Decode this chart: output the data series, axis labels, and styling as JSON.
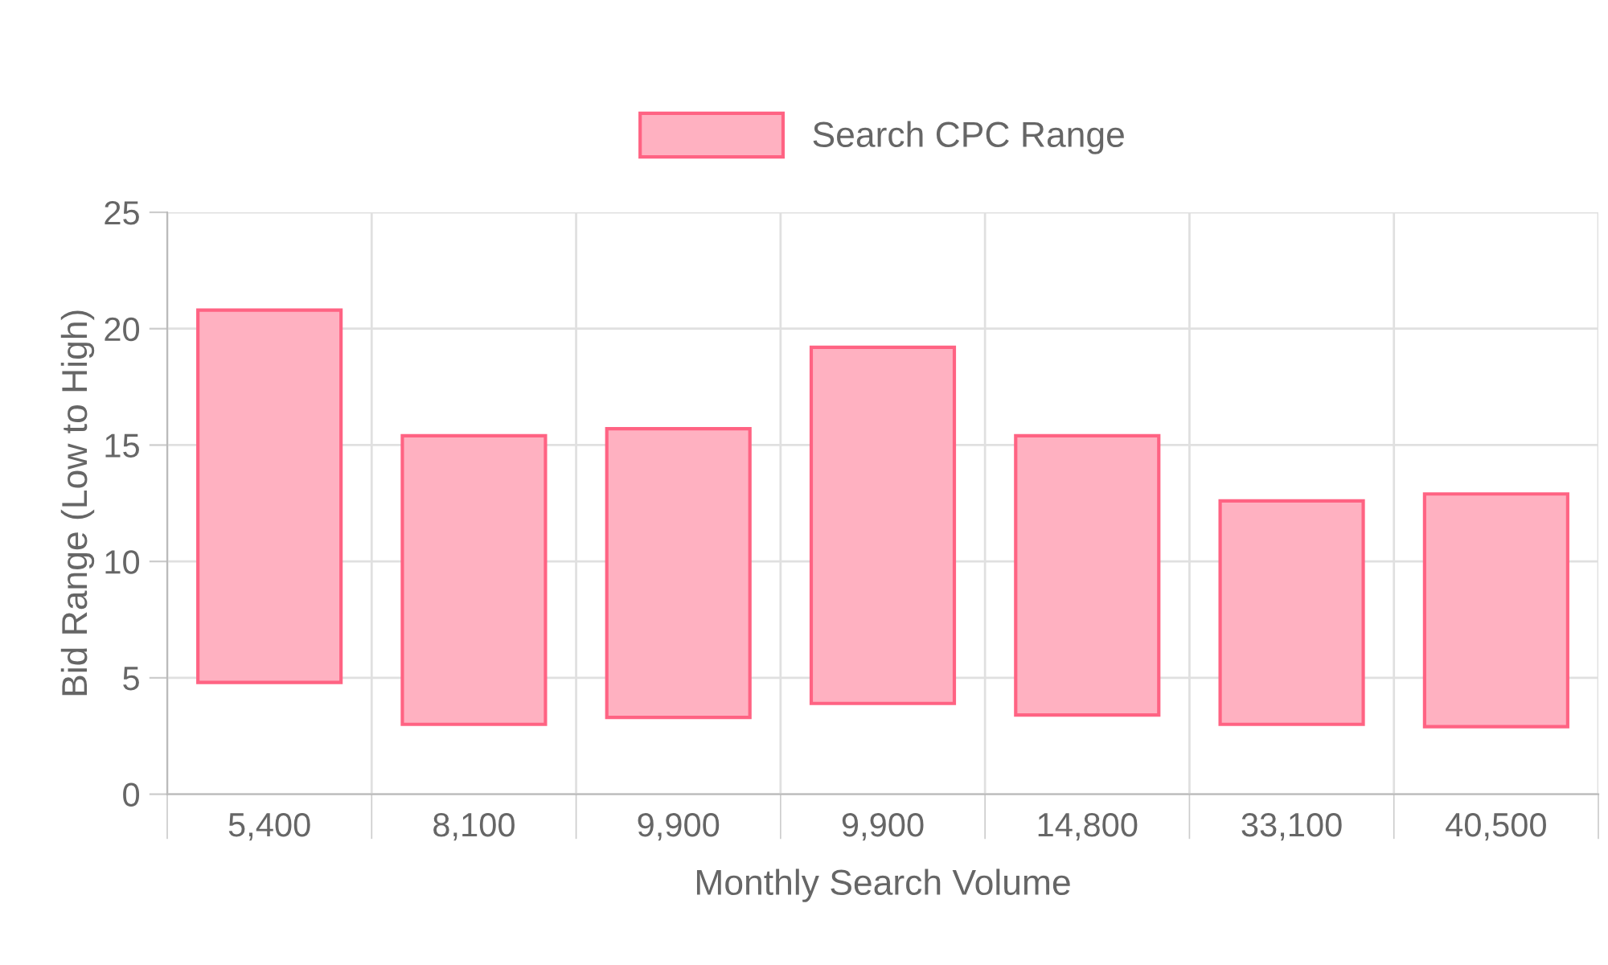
{
  "chart_data": {
    "type": "bar",
    "xlabel": "Monthly Search Volume",
    "ylabel": "Bid Range (Low to High)",
    "categories": [
      "5,400",
      "8,100",
      "9,900",
      "9,900",
      "14,800",
      "33,100",
      "40,500"
    ],
    "series": [
      {
        "name": "Search CPC Range",
        "color": "#ffb1c1",
        "values": [
          16.0,
          12.4,
          12.4,
          15.3,
          12.0,
          9.6,
          10.0
        ],
        "base": [
          4.8,
          3.0,
          3.3,
          3.9,
          3.4,
          3.0,
          2.9
        ]
      }
    ],
    "ylim": [
      0,
      25
    ],
    "yticks": [
      0,
      5,
      10,
      15,
      20,
      25
    ],
    "grid": true,
    "legend": "top"
  }
}
